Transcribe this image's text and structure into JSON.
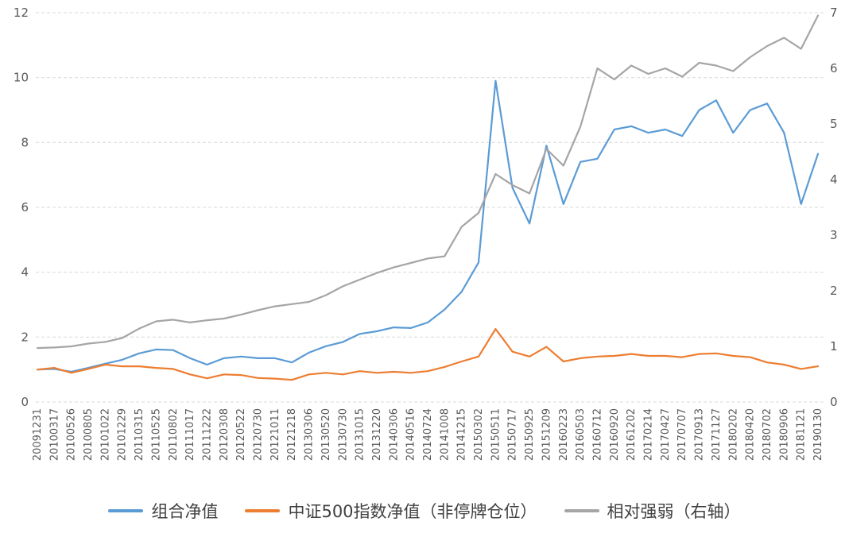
{
  "chart_data": {
    "type": "line",
    "title": "",
    "grid": {
      "horizontal": true,
      "style": "dashed",
      "color": "#D9D9D9"
    },
    "axis_text_color": "#595959",
    "legend_position": "bottom",
    "left_axis": {
      "min": 0,
      "max": 12,
      "ticks": [
        0,
        2,
        4,
        6,
        8,
        10,
        12
      ]
    },
    "right_axis": {
      "min": 0,
      "max": 7,
      "ticks": [
        0,
        1,
        2,
        3,
        4,
        5,
        6,
        7
      ]
    },
    "x_labels": [
      "20091231",
      "20100317",
      "20100526",
      "20100805",
      "20101022",
      "20101229",
      "20110315",
      "20110525",
      "20110802",
      "20111017",
      "20111222",
      "20120308",
      "20120522",
      "20120730",
      "20121011",
      "20121218",
      "20130306",
      "20130520",
      "20130730",
      "20131015",
      "20131220",
      "20140306",
      "20140516",
      "20140724",
      "20141008",
      "20141215",
      "20150302",
      "20150511",
      "20150717",
      "20150925",
      "20151209",
      "20160223",
      "20160503",
      "20160712",
      "20160920",
      "20161202",
      "20170214",
      "20170427",
      "20170707",
      "20170913",
      "20171127",
      "20180202",
      "20180420",
      "20180702",
      "20180906",
      "20181121",
      "20190130"
    ],
    "series": [
      {
        "id": "portfolio-nav",
        "name": "组合净值",
        "axis": "left",
        "color": "#5B9BD5",
        "values": [
          1.0,
          1.02,
          0.93,
          1.05,
          1.18,
          1.3,
          1.5,
          1.62,
          1.6,
          1.35,
          1.15,
          1.35,
          1.4,
          1.35,
          1.35,
          1.22,
          1.52,
          1.72,
          1.85,
          2.1,
          2.18,
          2.3,
          2.28,
          2.45,
          2.85,
          3.4,
          4.3,
          9.9,
          6.6,
          5.5,
          7.9,
          6.1,
          7.4,
          7.5,
          8.4,
          8.5,
          8.3,
          8.4,
          8.2,
          9.0,
          9.3,
          8.3,
          9.0,
          9.2,
          8.3,
          6.1,
          7.65
        ]
      },
      {
        "id": "csi500-nav",
        "name": "中证500指数净值（非停牌仓位）",
        "axis": "left",
        "color": "#ED7D31",
        "values": [
          1.0,
          1.05,
          0.9,
          1.02,
          1.15,
          1.1,
          1.1,
          1.05,
          1.02,
          0.85,
          0.73,
          0.85,
          0.83,
          0.74,
          0.72,
          0.68,
          0.85,
          0.9,
          0.85,
          0.95,
          0.9,
          0.93,
          0.9,
          0.95,
          1.08,
          1.25,
          1.4,
          2.25,
          1.55,
          1.4,
          1.7,
          1.25,
          1.35,
          1.4,
          1.42,
          1.48,
          1.42,
          1.42,
          1.38,
          1.48,
          1.5,
          1.42,
          1.38,
          1.22,
          1.15,
          1.02,
          1.1
        ]
      },
      {
        "id": "relative-strength",
        "name": "相对强弱（右轴）",
        "axis": "right",
        "color": "#A5A5A5",
        "values": [
          0.97,
          0.98,
          1.0,
          1.05,
          1.08,
          1.15,
          1.32,
          1.45,
          1.48,
          1.43,
          1.47,
          1.5,
          1.57,
          1.65,
          1.72,
          1.76,
          1.8,
          1.92,
          2.08,
          2.2,
          2.32,
          2.42,
          2.5,
          2.58,
          2.62,
          3.15,
          3.4,
          4.1,
          3.9,
          3.75,
          4.55,
          4.25,
          4.95,
          6.0,
          5.8,
          6.05,
          5.9,
          6.0,
          5.85,
          6.1,
          6.05,
          5.95,
          6.2,
          6.4,
          6.55,
          6.35,
          6.95
        ]
      }
    ]
  }
}
